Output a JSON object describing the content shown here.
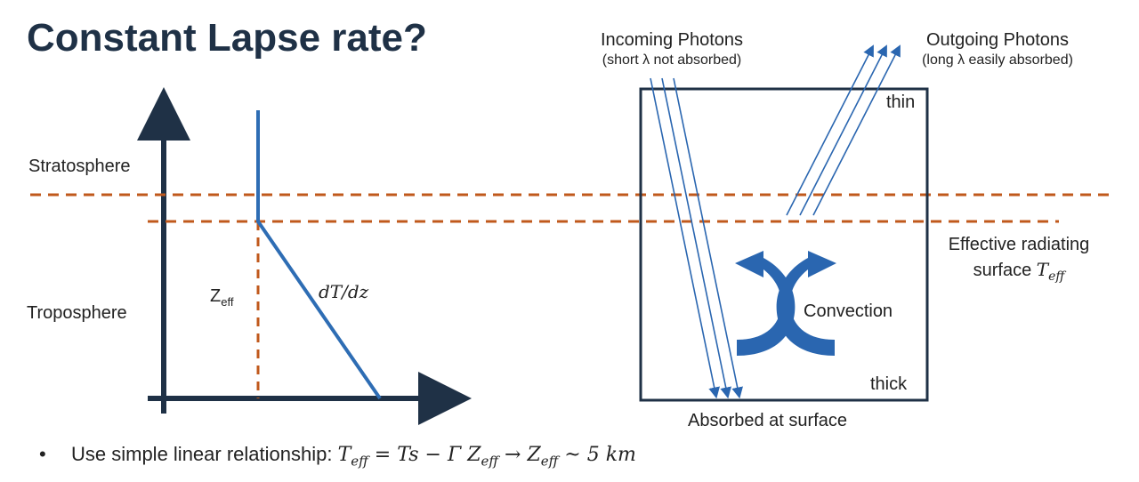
{
  "title": "Constant Lapse rate?",
  "left_diagram": {
    "stratosphere_label": "Stratosphere",
    "troposphere_label": "Troposphere",
    "zeff_label": "Z",
    "zeff_subscript": "eff",
    "slope_label": "dT/dz"
  },
  "right_diagram": {
    "incoming_title": "Incoming Photons",
    "incoming_note": "(short λ not absorbed)",
    "outgoing_title": "Outgoing Photons",
    "outgoing_note": "(long λ easily absorbed)",
    "thin_label": "thin",
    "thick_label": "thick",
    "convection_label": "Convection",
    "absorbed_label": "Absorbed at surface",
    "effective_line1": "Effective radiating",
    "effective_line2_text": "surface ",
    "effective_line2_math": "T",
    "effective_line2_sub": "eff"
  },
  "bullet": {
    "text": "Use simple linear relationship: ",
    "eq_part1": "T",
    "eq_sub1": "eff",
    "eq_part2": " = Ts − Γ Z",
    "eq_sub2": "eff",
    "eq_part3": " → Z",
    "eq_sub3": "eff",
    "eq_part4": " ~ 5 km"
  },
  "colors": {
    "axis": "#1f3146",
    "profile": "#2e6db4",
    "dashed": "#c0591c",
    "arrow_blue": "#2a66b0"
  }
}
